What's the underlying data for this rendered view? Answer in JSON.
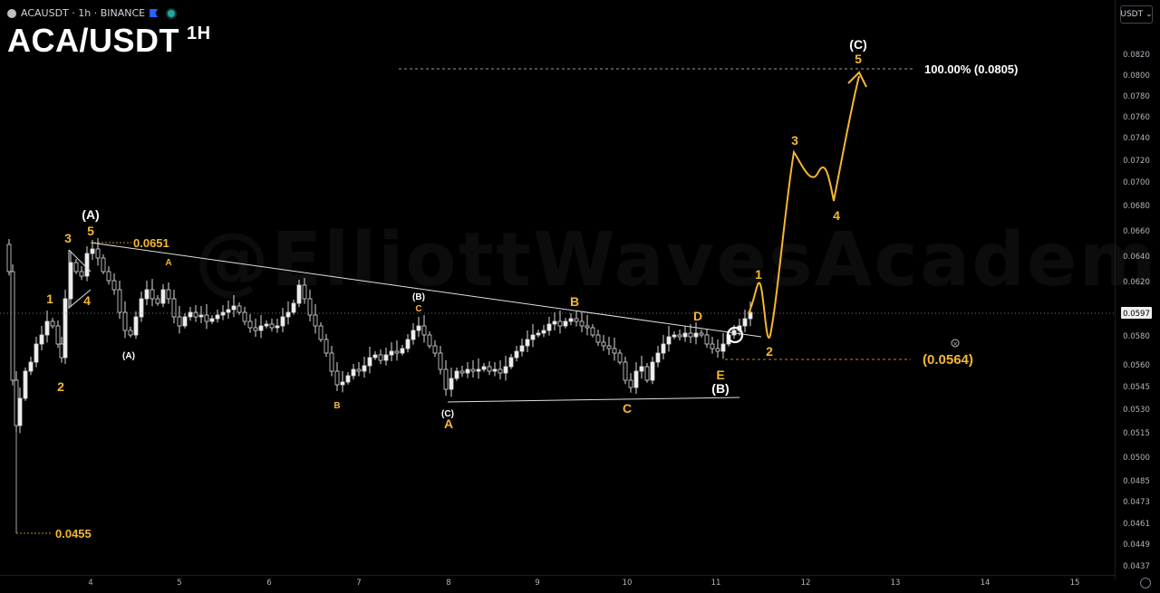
{
  "header": {
    "symbol_line": "ACAUSDT · 1h · BINANCE",
    "title": "ACA/USDT",
    "title_sup": "1H",
    "currency": "USDT"
  },
  "watermark": "@ElliottWavesAcademy",
  "colors": {
    "background": "#000000",
    "wave_orange": "#f5b731",
    "candle": "#e8e8e8",
    "line": "#d0d0d0"
  },
  "price_axis": {
    "ticks": [
      "0.0820",
      "0.0800",
      "0.0780",
      "0.0760",
      "0.0740",
      "0.0720",
      "0.0700",
      "0.0680",
      "0.0660",
      "0.0640",
      "0.0620",
      "0.0597",
      "0.0580",
      "0.0560",
      "0.0545",
      "0.0530",
      "0.0515",
      "0.0500",
      "0.0485",
      "0.0473",
      "0.0461",
      "0.0449",
      "0.0437"
    ],
    "current_price": "0.0597"
  },
  "time_axis": {
    "ticks": [
      "4",
      "5",
      "6",
      "7",
      "8",
      "9",
      "10",
      "11",
      "12",
      "13",
      "14",
      "15"
    ]
  },
  "chart_data": {
    "type": "candlestick",
    "symbol": "ACAUSDT",
    "interval": "1h",
    "exchange": "BINANCE",
    "levels": [
      {
        "label": "0.0651",
        "value": 0.0651
      },
      {
        "label": "0.0455",
        "value": 0.0455
      },
      {
        "label": "100.00% (0.0805)",
        "value": 0.0805
      },
      {
        "label": "(0.0564)",
        "value": 0.0564
      }
    ],
    "wave_labels_white": [
      "(A)",
      "(A)",
      "(B)",
      "(C)",
      "(B)",
      "(C)"
    ],
    "wave_labels_orange": [
      "5",
      "3",
      "4",
      "1",
      "2",
      "A",
      "B",
      "C",
      "B",
      "A",
      "C",
      "D",
      "E",
      "1",
      "2",
      "3",
      "4",
      "5"
    ],
    "wave_labels_orange_small": [
      "A",
      "B",
      "C"
    ],
    "projection": [
      {
        "label": "1",
        "value": 0.063
      },
      {
        "label": "2",
        "value": 0.0577
      },
      {
        "label": "3",
        "value": 0.0728
      },
      {
        "label": "4",
        "value": 0.0688
      },
      {
        "label": "5",
        "value": 0.0805
      }
    ]
  }
}
